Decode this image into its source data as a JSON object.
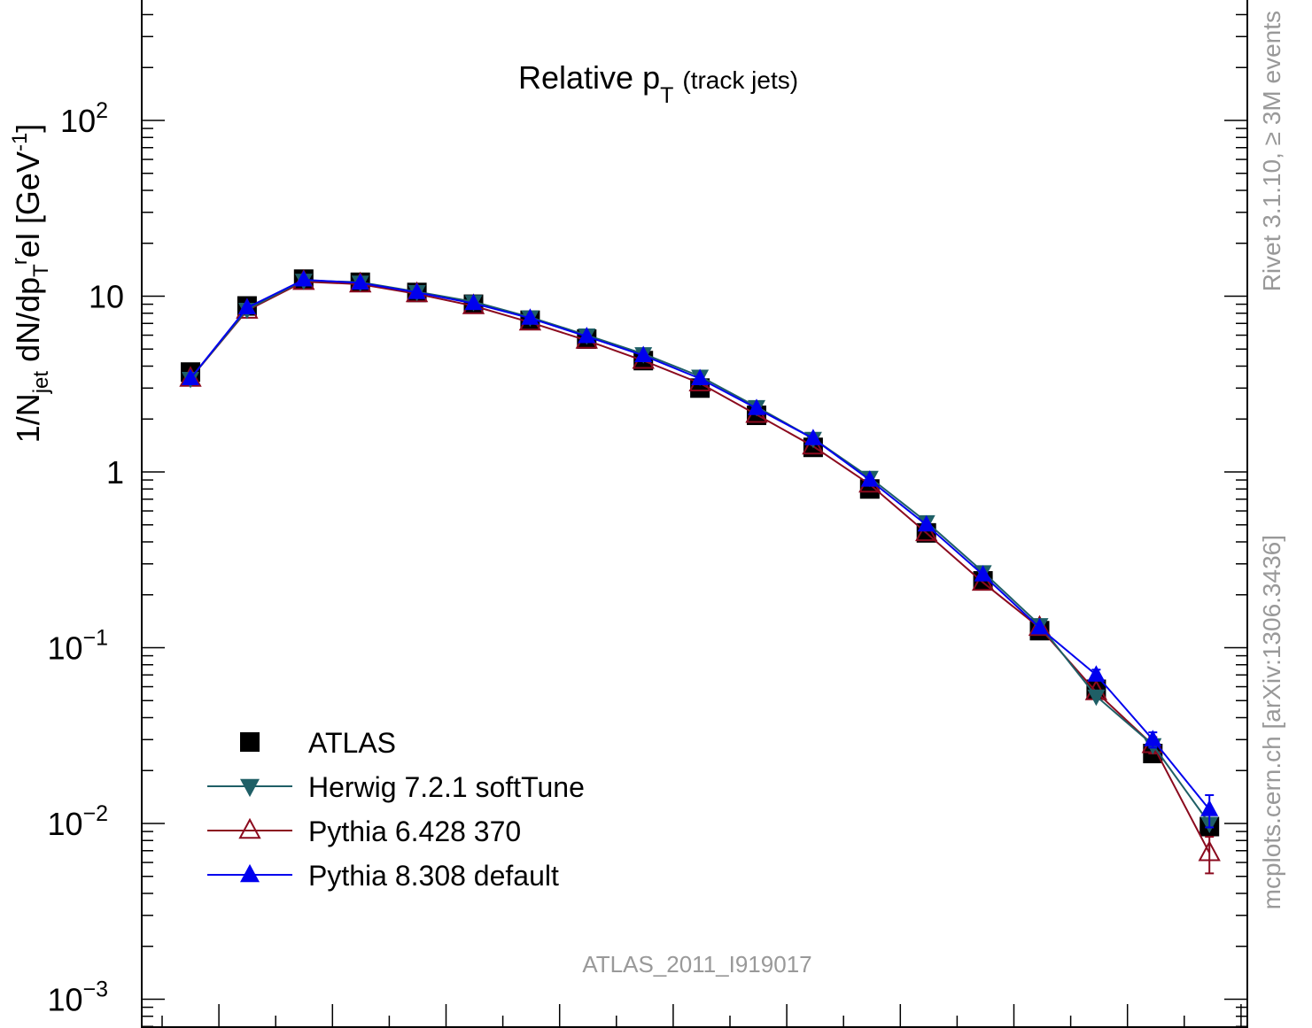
{
  "chart_data": {
    "type": "line",
    "title_main": "Relative p",
    "title_sub": "T",
    "title_suffix": "(track jets)",
    "ylabel_parts": [
      "1/N",
      "jet",
      " dN/dp",
      "T",
      "r",
      "el [GeV",
      "-1",
      "]"
    ],
    "yscale": "log",
    "ylim": [
      0.001,
      400
    ],
    "y_ticks": [
      {
        "value": 0.001,
        "base": "10",
        "exp": "−3"
      },
      {
        "value": 0.01,
        "base": "10",
        "exp": "−2"
      },
      {
        "value": 0.1,
        "base": "10",
        "exp": "−1"
      },
      {
        "value": 1,
        "base": "1",
        "exp": ""
      },
      {
        "value": 10,
        "base": "10",
        "exp": ""
      },
      {
        "value": 100,
        "base": "10",
        "exp": "2"
      }
    ],
    "series": [
      {
        "name": "ATLAS",
        "marker": "square",
        "color": "#000000",
        "line": false,
        "values": [
          3.7,
          8.8,
          12.5,
          12.0,
          10.5,
          9.0,
          7.3,
          5.7,
          4.3,
          3.0,
          2.1,
          1.38,
          0.8,
          0.45,
          0.24,
          0.125,
          0.058,
          0.025,
          0.0096
        ],
        "err": [
          0.2,
          0.4,
          0.5,
          0.5,
          0.4,
          0.3,
          0.25,
          0.2,
          0.15,
          0.1,
          0.07,
          0.05,
          0.03,
          0.02,
          0.01,
          0.006,
          0.004,
          0.002,
          0.001
        ]
      },
      {
        "name": "Herwig 7.2.1 softTune",
        "marker": "triangle-down",
        "color": "#1f5f66",
        "line": true,
        "values": [
          3.4,
          8.4,
          12.3,
          12.0,
          10.6,
          9.3,
          7.6,
          6.0,
          4.7,
          3.5,
          2.35,
          1.55,
          0.93,
          0.52,
          0.27,
          0.135,
          0.053,
          0.028,
          0.01
        ],
        "err": [
          0,
          0,
          0,
          0,
          0,
          0,
          0,
          0,
          0,
          0,
          0,
          0,
          0,
          0,
          0,
          0,
          0,
          0,
          0
        ]
      },
      {
        "name": "Pythia 6.428 370",
        "marker": "triangle-open",
        "color": "#8b0a1e",
        "line": true,
        "values": [
          3.4,
          8.3,
          12.1,
          11.7,
          10.3,
          8.8,
          7.1,
          5.6,
          4.3,
          3.2,
          2.12,
          1.4,
          0.85,
          0.45,
          0.235,
          0.13,
          0.056,
          0.028,
          0.0068
        ],
        "err": [
          0,
          0,
          0,
          0,
          0,
          0,
          0,
          0,
          0,
          0,
          0,
          0,
          0,
          0,
          0,
          0,
          0,
          0.003,
          0.0016
        ]
      },
      {
        "name": "Pythia 8.308 default",
        "marker": "triangle-up",
        "color": "#0000ee",
        "line": true,
        "values": [
          3.4,
          8.6,
          12.4,
          11.9,
          10.5,
          9.1,
          7.5,
          5.9,
          4.6,
          3.4,
          2.3,
          1.55,
          0.9,
          0.5,
          0.26,
          0.13,
          0.07,
          0.03,
          0.012
        ],
        "err": [
          0,
          0,
          0,
          0,
          0,
          0,
          0,
          0,
          0,
          0,
          0,
          0,
          0,
          0,
          0,
          0,
          0.005,
          0.003,
          0.0025
        ]
      }
    ],
    "legend_position": "bottom-left",
    "watermark": "ATLAS_2011_I919017",
    "side_text_top": "Rivet 3.1.10, ≥ 3M events",
    "side_text_bottom": "mcplots.cern.ch [arXiv:1306.3436]"
  }
}
